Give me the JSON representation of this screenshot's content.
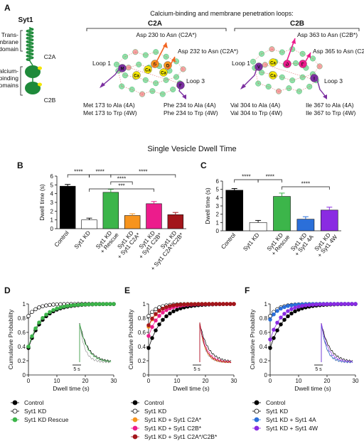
{
  "panels": {
    "a": "A",
    "b": "B",
    "c": "C",
    "d": "D",
    "e": "E",
    "f": "F"
  },
  "colors": {
    "black": "#000000",
    "green": "#3cb54a",
    "orange": "#f7941d",
    "pink": "#ec1c8c",
    "darkred": "#a3161b",
    "blue": "#2b6fd9",
    "purple": "#8a2be2",
    "grey": "#888888"
  },
  "panel_a": {
    "protein": "Syt1",
    "tm_label_1": "Trans-",
    "tm_label_2": "membrane",
    "tm_label_3": "domain",
    "cb_label_1": "Calcium-",
    "cb_label_2": "binding",
    "cb_label_3": "domains",
    "c2a_small": "C2A",
    "c2b_small": "C2B",
    "header": "Calcium-binding and membrane penetration loops:",
    "c2a_title": "C2A",
    "c2b_title": "C2B",
    "c2a": {
      "loop1": "Loop 1",
      "loop3": "Loop 3",
      "mut_230": "Asp 230 to Asn (C2A*)",
      "mut_232": "Asp 232 to Asn (C2A*)",
      "mut_173a": "Met 173 to Ala (4A)",
      "mut_173w": "Met 173 to Trp (4W)",
      "mut_234a": "Phe 234 to Ala (4A)",
      "mut_234w": "Phe 234 to Trp (4W)",
      "res_m": "M",
      "res_f": "F",
      "res_d": "D",
      "res_ca": "Ca"
    },
    "c2b": {
      "loop1": "Loop 1",
      "loop3": "Loop 3",
      "mut_363": "Asp 363 to Asn (C2B*)",
      "mut_365": "Asp 365 to Asn (C2B*)",
      "mut_304a": "Val 304 to Ala (4A)",
      "mut_304w": "Val 304 to Trp (4W)",
      "mut_367a": "Ile 367 to Ala (4A)",
      "mut_367w": "Ile 367 to Trp (4W)",
      "res_v": "V",
      "res_i": "I",
      "res_d": "D",
      "res_ca": "Ca"
    }
  },
  "section_title": "Single Vesicle Dwell Time",
  "chart_data": [
    {
      "panel": "B",
      "type": "bar",
      "ylabel": "Dwell time (s)",
      "ylim": [
        0,
        6
      ],
      "yticks": [
        0,
        1,
        2,
        3,
        4,
        5,
        6
      ],
      "categories": [
        {
          "label1": "Control",
          "label2": "",
          "value": 4.85,
          "err": 0.2,
          "color": "#000000"
        },
        {
          "label1": "Syt1 KD",
          "label2": "",
          "value": 1.0,
          "err": 0.2,
          "color": "#ffffff"
        },
        {
          "label1": "Syt1 KD",
          "label2": "+ Rescue",
          "value": 4.15,
          "err": 0.35,
          "color": "#3cb54a"
        },
        {
          "label1": "Syt1 KD",
          "label2": "+ Syt1 C2A*",
          "value": 1.5,
          "err": 0.2,
          "color": "#f7941d"
        },
        {
          "label1": "Syt1 KD",
          "label2": "+ Syt1 C2B*",
          "value": 2.85,
          "err": 0.25,
          "color": "#ec1c8c"
        },
        {
          "label1": "Syt1 KD",
          "label2": "+ Syt1 C2A*/C2B*",
          "value": 1.6,
          "err": 0.25,
          "color": "#a3161b"
        }
      ],
      "significance": [
        {
          "from": 0,
          "to": 1,
          "label": "****",
          "level": 0
        },
        {
          "from": 1,
          "to": 2,
          "label": "****",
          "level": 0
        },
        {
          "from": 2,
          "to": 3,
          "label": "****",
          "level": 1
        },
        {
          "from": 2,
          "to": 5,
          "label": "****",
          "level": 0
        },
        {
          "from": 1,
          "to": 4,
          "label": "***",
          "level": 2
        }
      ]
    },
    {
      "panel": "C",
      "type": "bar",
      "ylabel": "Dwell time (s)",
      "ylim": [
        0,
        6
      ],
      "yticks": [
        0,
        1,
        2,
        3,
        4,
        5,
        6
      ],
      "categories": [
        {
          "label1": "Control",
          "label2": "",
          "value": 4.9,
          "err": 0.2,
          "color": "#000000"
        },
        {
          "label1": "Syt1 KD",
          "label2": "",
          "value": 1.0,
          "err": 0.25,
          "color": "#ffffff"
        },
        {
          "label1": "Syt1 KD",
          "label2": "+ Rescue",
          "value": 4.15,
          "err": 0.4,
          "color": "#3cb54a"
        },
        {
          "label1": "Syt1 KD",
          "label2": "+ Syt1 4A",
          "value": 1.4,
          "err": 0.3,
          "color": "#2b6fd9"
        },
        {
          "label1": "Syt1 KD",
          "label2": "+ Syt1 4W",
          "value": 2.5,
          "err": 0.35,
          "color": "#8a2be2"
        }
      ],
      "significance": [
        {
          "from": 0,
          "to": 1,
          "label": "****",
          "level": 0
        },
        {
          "from": 1,
          "to": 2,
          "label": "****",
          "level": 0
        },
        {
          "from": 2,
          "to": 4,
          "label": "****",
          "level": 1
        }
      ]
    },
    {
      "panel": "D",
      "type": "line",
      "xlabel": "Dwell time (s)",
      "ylabel": "Cumulative Probability",
      "xlim": [
        0,
        30
      ],
      "ylim": [
        0,
        1
      ],
      "xticks": [
        0,
        10,
        20,
        30
      ],
      "yticks": [
        0,
        0.2,
        0.4,
        0.6,
        0.8,
        1
      ],
      "scale_label": "5 s",
      "series": [
        {
          "name": "Control",
          "color": "#000000",
          "fill": "#000000",
          "tau": 4.9,
          "p0": 0.38
        },
        {
          "name": "Syt1 KD",
          "color": "#000000",
          "fill": "#ffffff",
          "tau": 3.0,
          "p0": 0.83
        },
        {
          "name": "Syt1 KD Rescue",
          "color": "#3cb54a",
          "fill": "#3cb54a",
          "tau": 4.5,
          "p0": 0.4
        }
      ]
    },
    {
      "panel": "E",
      "type": "line",
      "xlabel": "Dwell time (s)",
      "ylabel": "Cumulative Probability",
      "xlim": [
        0,
        30
      ],
      "ylim": [
        0,
        1
      ],
      "xticks": [
        0,
        10,
        20,
        30
      ],
      "yticks": [
        0,
        0.2,
        0.4,
        0.6,
        0.8,
        1
      ],
      "scale_label": "5 s",
      "series": [
        {
          "name": "Control",
          "color": "#000000",
          "fill": "#000000",
          "tau": 4.9,
          "p0": 0.38
        },
        {
          "name": "Syt1 KD",
          "color": "#000000",
          "fill": "#ffffff",
          "tau": 3.0,
          "p0": 0.83
        },
        {
          "name": "Syt1 KD + Syt1 C2A*",
          "color": "#f7941d",
          "fill": "#f7941d",
          "tau": 3.2,
          "p0": 0.68
        },
        {
          "name": "Syt1 KD + Syt1 C2B*",
          "color": "#ec1c8c",
          "fill": "#ec1c8c",
          "tau": 3.8,
          "p0": 0.55
        },
        {
          "name": "Syt1 KD + Syt1 C2A*/C2B*",
          "color": "#a3161b",
          "fill": "#a3161b",
          "tau": 3.3,
          "p0": 0.7
        }
      ]
    },
    {
      "panel": "F",
      "type": "line",
      "xlabel": "Dwell time (s)",
      "ylabel": "Cumulative Probability",
      "xlim": [
        0,
        30
      ],
      "ylim": [
        0,
        1
      ],
      "xticks": [
        0,
        10,
        20,
        30
      ],
      "yticks": [
        0,
        0.2,
        0.4,
        0.6,
        0.8,
        1
      ],
      "scale_label": "5 s",
      "series": [
        {
          "name": "Control",
          "color": "#000000",
          "fill": "#000000",
          "tau": 4.9,
          "p0": 0.38
        },
        {
          "name": "Syt1 KD",
          "color": "#000000",
          "fill": "#ffffff",
          "tau": 3.0,
          "p0": 0.83
        },
        {
          "name": "Syt1 KD + Syt1 4A",
          "color": "#2b6fd9",
          "fill": "#2b6fd9",
          "tau": 3.1,
          "p0": 0.78
        },
        {
          "name": "Syt1 KD + Syt1 4W",
          "color": "#8a2be2",
          "fill": "#8a2be2",
          "tau": 3.9,
          "p0": 0.5
        }
      ]
    }
  ]
}
